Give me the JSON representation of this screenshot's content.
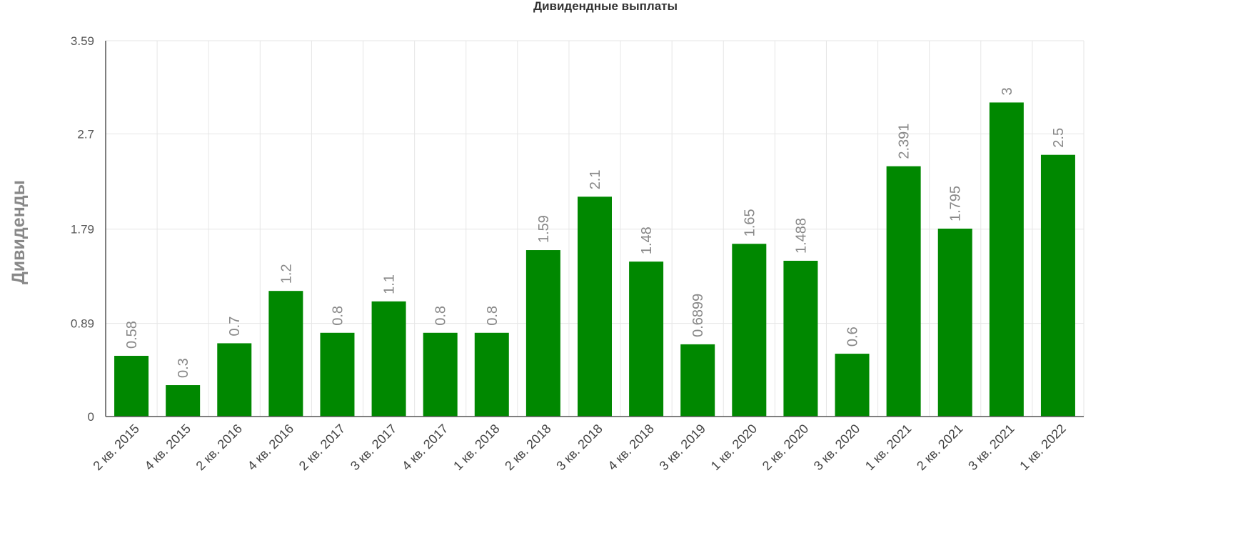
{
  "chart_data": {
    "type": "bar",
    "title": "Дивидендные выплаты",
    "xlabel": "",
    "ylabel": "Дивиденды",
    "categories": [
      "2 кв. 2015",
      "4 кв. 2015",
      "2 кв. 2016",
      "4 кв. 2016",
      "2 кв. 2017",
      "3 кв. 2017",
      "4 кв. 2017",
      "1 кв. 2018",
      "2 кв. 2018",
      "3 кв. 2018",
      "4 кв. 2018",
      "3 кв. 2019",
      "1 кв. 2020",
      "2 кв. 2020",
      "3 кв. 2020",
      "1 кв. 2021",
      "2 кв. 2021",
      "3 кв. 2021",
      "1 кв. 2022"
    ],
    "values": [
      0.58,
      0.3,
      0.7,
      1.2,
      0.8,
      1.1,
      0.8,
      0.8,
      1.59,
      2.1,
      1.48,
      0.6899,
      1.65,
      1.488,
      0.6,
      2.391,
      1.795,
      3,
      2.5
    ],
    "data_labels": [
      "0.58",
      "0.3",
      "0.7",
      "1.2",
      "0.8",
      "1.1",
      "0.8",
      "0.8",
      "1.59",
      "2.1",
      "1.48",
      "0.6899",
      "1.65",
      "1.488",
      "0.6",
      "2.391",
      "1.795",
      "3",
      "2.5"
    ],
    "ylim": [
      0,
      3.59
    ],
    "yticks": [
      0,
      0.89,
      1.79,
      2.7,
      3.59
    ],
    "ytick_labels": [
      "0",
      "0.89",
      "1.79",
      "2.7",
      "3.59"
    ],
    "grid": true,
    "legend": "none",
    "bar_color": "#008800"
  }
}
